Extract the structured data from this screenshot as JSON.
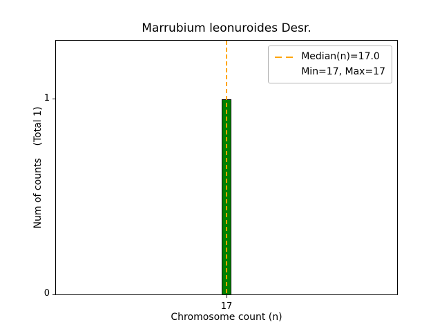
{
  "figure_title": "Marrubium leonuroides Desr.",
  "axes": {
    "xlabel": "Chromosome count (n)",
    "ylabel": "Num of counts    (Total 1)"
  },
  "legend": {
    "median": "Median(n)=17.0",
    "minmax": "Min=17, Max=17"
  },
  "colors": {
    "bar_fill": "#008000",
    "bar_edge": "#000000",
    "median_line": "#FFA500",
    "axis": "#000000",
    "legend_border": "#b3b3b3"
  },
  "chart_data": {
    "type": "bar",
    "title": "Marrubium leonuroides Desr.",
    "xlabel": "Chromosome count (n)",
    "ylabel": "Num of counts (Total 1)",
    "categories": [
      17
    ],
    "values": [
      1
    ],
    "xticks": [
      "17"
    ],
    "yticks": [
      0,
      1
    ],
    "ylim": [
      0,
      1.3
    ],
    "median": 17.0,
    "min": 17,
    "max": 17,
    "total_counts": 1,
    "legend_entries": [
      "Median(n)=17.0",
      "Min=17, Max=17"
    ],
    "legend_position": "upper right",
    "grid": false,
    "bar_color": "#008000",
    "bar_edge_color": "#000000",
    "median_line_color": "#FFA500",
    "median_line_style": "dashed"
  }
}
